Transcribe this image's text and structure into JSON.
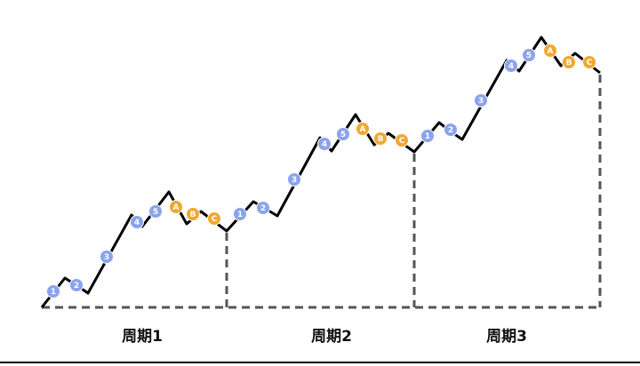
{
  "cycles": [
    {
      "label": "周期1",
      "waves": [
        "1",
        "2",
        "3",
        "4",
        "5",
        "A",
        "B",
        "C"
      ]
    },
    {
      "label": "周期2",
      "waves": [
        "1",
        "2",
        "3",
        "4",
        "5",
        "A",
        "B",
        "C"
      ]
    },
    {
      "label": "周期3",
      "waves": [
        "1",
        "2",
        "3",
        "4",
        "5",
        "A",
        "B",
        "C"
      ]
    }
  ]
}
